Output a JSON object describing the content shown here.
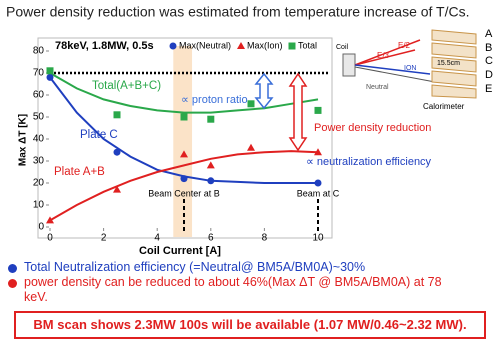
{
  "title": "Power density reduction was estimated from temperature increase of T/Cs.",
  "chart_data": {
    "type": "scatter",
    "condition": "78keV, 1.8MW, 0.5s",
    "x_label": "Coil Current [A]",
    "y_label": "Max ΔT [K]",
    "xlim": [
      0,
      10
    ],
    "xticks": [
      0,
      2,
      4,
      6,
      8,
      10
    ],
    "ylim": [
      0,
      80
    ],
    "yticks": [
      0,
      10,
      20,
      30,
      40,
      50,
      60,
      70,
      80
    ],
    "legend": "top",
    "series": [
      {
        "name": "Max(Neutral)",
        "color": "#1f3fbf",
        "marker": "circle",
        "x": [
          0,
          2.5,
          5,
          6,
          10
        ],
        "values": [
          68,
          34,
          22,
          21,
          20
        ]
      },
      {
        "name": "Max(Ion)",
        "color": "#e02020",
        "marker": "triangle",
        "x": [
          0,
          2.5,
          5,
          6,
          7.5,
          10
        ],
        "values": [
          3,
          17,
          33,
          28,
          36,
          34
        ]
      },
      {
        "name": "Total",
        "color": "#2aa84a",
        "marker": "square",
        "x": [
          0,
          2.5,
          5,
          6,
          7.5,
          10
        ],
        "values": [
          71,
          51,
          50,
          49,
          56,
          53
        ]
      }
    ],
    "fit_curves": [
      {
        "label": "Total(A+B+C)",
        "color": "#2aa84a",
        "x": [
          0,
          1,
          2,
          3,
          4,
          5,
          6,
          7,
          8,
          9,
          10
        ],
        "values": [
          70,
          63,
          58,
          55,
          53,
          52,
          52,
          53,
          54,
          56,
          58
        ]
      },
      {
        "label": "Plate C",
        "color": "#1f3fbf",
        "x": [
          0,
          1,
          2,
          3,
          4,
          5,
          6,
          7,
          8,
          10
        ],
        "values": [
          68,
          52,
          40,
          32,
          26,
          23,
          21,
          20.5,
          20,
          20
        ]
      },
      {
        "label": "Plate A+B",
        "color": "#e02020",
        "x": [
          0,
          1,
          2,
          3,
          4,
          5,
          6,
          7,
          8,
          9,
          10
        ],
        "values": [
          3,
          10,
          16,
          21,
          25,
          28,
          31,
          33,
          34,
          34.5,
          34
        ]
      }
    ],
    "reference_line": 70,
    "highlight_band": [
      4.6,
      5.3
    ],
    "markers": [
      {
        "x": 5,
        "label": "Beam Center at B"
      },
      {
        "x": 10,
        "label": "Beam at C"
      }
    ],
    "annotations": [
      "∝ proton ratio",
      "Power density reduction",
      "∝ neutralization efficiency"
    ]
  },
  "diagram": {
    "coil": "Coil",
    "beams": [
      "E/3",
      "E/2",
      "ION",
      "Neutral"
    ],
    "width": "15.5cm",
    "target": "Calorimeter",
    "plates": [
      "A",
      "B",
      "C",
      "D",
      "E"
    ]
  },
  "bullets": [
    "Total Neutralization efficiency (=Neutral@ BM5A/BM0A)~30%",
    "power density can be reduced to about 46%(Max ΔT @ BM5A/BM0A) at 78 keV."
  ],
  "conclusion": "BM scan shows 2.3MW 100s will be available (1.07 MW/0.46~2.32 MW)."
}
